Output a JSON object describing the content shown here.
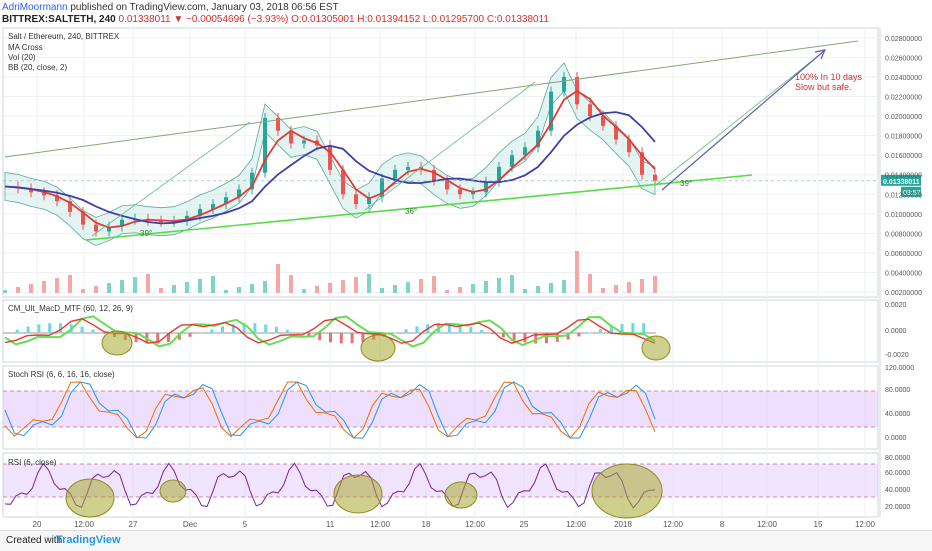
{
  "header": {
    "author": "AdriMoormann",
    "published": "published on TradingView.com, January 03, 2018 06:56 EST",
    "symbol": "BITTREX:SALTETH, 240",
    "price": "0.01338011",
    "change": "▼ −0.00054696 (−3.93%)",
    "ohlc": "O:0.01305001 H:0.01394152 L:0.01295700 C:0.01338011"
  },
  "main_pane": {
    "title": "Salt / Ethereum, 240, BITTREX",
    "indicators": [
      "MA Cross",
      "Vol (20)",
      "BB (20, close, 2)"
    ],
    "note_line1": "100% In 10 days",
    "note_line2": "Slow but safe.",
    "angles": [
      "39°",
      "36°",
      "39°"
    ],
    "price_label": "0.01338011",
    "time_label": "03:57",
    "y_ticks": [
      "0.02800000",
      "0.02600000",
      "0.02400000",
      "0.02200000",
      "0.02000000",
      "0.01800000",
      "0.01600000",
      "0.01400000",
      "0.01200000",
      "0.01000000",
      "0.00800000",
      "0.00600000",
      "0.00400000",
      "0.00200000"
    ]
  },
  "macd_pane": {
    "title": "CM_Ult_MacD_MTF (60, 12, 26, 9)",
    "y_ticks": [
      "0.0020",
      "0.0000",
      "-0.0020"
    ]
  },
  "stoch_pane": {
    "title": "Stoch RSI (6, 6, 16, 16, close)",
    "y_ticks": [
      "120.0000",
      "80.0000",
      "40.0000",
      "0.0000"
    ]
  },
  "rsi_pane": {
    "title": "RSI (6, close)",
    "y_ticks": [
      "80.0000",
      "60.0000",
      "40.0000",
      "20.0000"
    ]
  },
  "x_ticks": [
    "20",
    "12:00",
    "27",
    "Dec",
    "5",
    "11",
    "12:00",
    "18",
    "12:00",
    "25",
    "12:00",
    "2018",
    "12:00",
    "8",
    "12:00",
    "15",
    "12:00"
  ],
  "footer": {
    "created": "Created with",
    "brand": "TradingView"
  },
  "colors": {
    "price_up": "#26a69a",
    "price_down": "#ef5350",
    "ma_fast": "#e53935",
    "ma_slow": "#3f3fa8",
    "bb_fill": "#b2dfdb",
    "trend": "#55dd44",
    "stoch_band": "#e1c4ff",
    "annotation": "#d32f2f"
  },
  "chart_data": [
    {
      "type": "line",
      "title": "Salt / Ethereum, 240, BITTREX",
      "ylim": [
        0.0015,
        0.029
      ],
      "series": [
        {
          "name": "",
          "values": [
            0.0128,
            0.0126,
            0.0122,
            0.0119,
            0.0113,
            0.0102,
            0.0089,
            0.0082,
            0.0087,
            0.0094,
            0.0095,
            0.0093,
            0.0092,
            0.0093,
            0.0098,
            0.0105,
            0.011,
            0.0117,
            0.0125,
            0.0142,
            0.0198,
            0.0185,
            0.0172,
            0.0175,
            0.017,
            0.0145,
            0.012,
            0.011,
            0.0117,
            0.0136,
            0.0145,
            0.0148,
            0.0145,
            0.0134,
            0.0125,
            0.012,
            0.0122,
            0.0133,
            0.0148,
            0.016,
            0.0168,
            0.0185,
            0.0225,
            0.024,
            0.0212,
            0.02,
            0.019,
            0.0176,
            0.0163,
            0.014,
            0.0134
          ]
        }
      ]
    }
  ]
}
